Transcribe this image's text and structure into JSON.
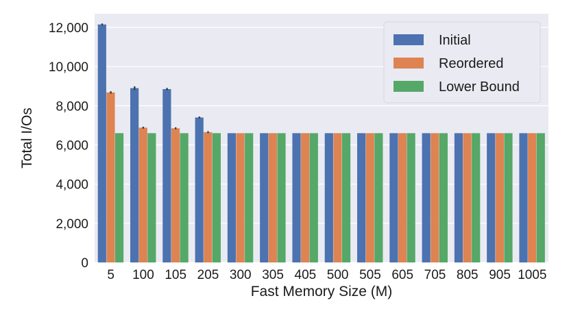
{
  "chart_data": {
    "type": "bar",
    "xlabel": "Fast Memory Size (M)",
    "ylabel": "Total I/Os",
    "ylim": [
      0,
      12700
    ],
    "yticks": [
      0,
      2000,
      4000,
      6000,
      8000,
      10000,
      12000
    ],
    "ytick_labels": [
      "0",
      "2,000",
      "4,000",
      "6,000",
      "8,000",
      "10,000",
      "12,000"
    ],
    "categories": [
      "5",
      "100",
      "105",
      "205",
      "300",
      "305",
      "405",
      "500",
      "505",
      "605",
      "705",
      "805",
      "905",
      "1005"
    ],
    "series": [
      {
        "name": "Initial",
        "color": "#4c72b0",
        "values": [
          12150,
          8900,
          8850,
          7400,
          6600,
          6600,
          6600,
          6600,
          6600,
          6600,
          6600,
          6600,
          6600,
          6600
        ]
      },
      {
        "name": "Reordered",
        "color": "#dd8452",
        "values": [
          8680,
          6880,
          6850,
          6650,
          6600,
          6600,
          6600,
          6600,
          6600,
          6600,
          6600,
          6600,
          6600,
          6600
        ]
      },
      {
        "name": "Lower Bound",
        "color": "#55a868",
        "values": [
          6600,
          6600,
          6600,
          6600,
          6600,
          6600,
          6600,
          6600,
          6600,
          6600,
          6600,
          6600,
          6600,
          6600
        ]
      }
    ],
    "error_bars": [
      [
        50,
        90,
        60,
        50,
        0,
        0,
        0,
        0,
        0,
        0,
        0,
        0,
        0,
        0
      ],
      [
        60,
        50,
        50,
        50,
        0,
        0,
        0,
        0,
        0,
        0,
        0,
        0,
        0,
        0
      ],
      [
        0,
        0,
        0,
        0,
        0,
        0,
        0,
        0,
        0,
        0,
        0,
        0,
        0,
        0
      ]
    ],
    "grid": true,
    "background": "#eaeaf2",
    "legend_position": "top-right"
  }
}
